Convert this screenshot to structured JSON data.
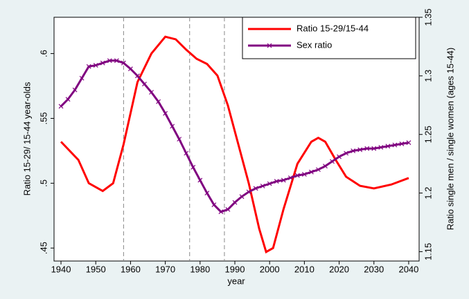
{
  "chart_data": {
    "type": "line",
    "xlabel": "year",
    "ylabel": "Ratio 15-29/ 15-44 year-olds",
    "y2label": "Ratio single men / single women (ages 15-44)",
    "xlim": [
      1938,
      2043
    ],
    "xticks": [
      1940,
      1950,
      1960,
      1970,
      1980,
      1990,
      2000,
      2010,
      2020,
      2030,
      2040
    ],
    "ylim": [
      0.44,
      0.628
    ],
    "yticks": [
      {
        "value": 0.45,
        "label": ".45"
      },
      {
        "value": 0.5,
        "label": ".5"
      },
      {
        "value": 0.55,
        "label": ".55"
      },
      {
        "value": 0.6,
        "label": ".6"
      }
    ],
    "y2lim": [
      1.142,
      1.35
    ],
    "y2ticks": [
      1.15,
      1.2,
      1.25,
      1.3,
      1.35
    ],
    "xlines": [
      1958,
      1977,
      1987
    ],
    "legend": "top-right",
    "grid": false,
    "series": [
      {
        "name": "Ratio 15-29/15-44",
        "color": "#ff0000",
        "marker": false,
        "x": [
          1940,
          1945,
          1948,
          1952,
          1955,
          1958,
          1962,
          1966,
          1970,
          1973,
          1976,
          1979,
          1982,
          1985,
          1988,
          1991,
          1994,
          1997,
          1999,
          2001,
          2004,
          2008,
          2012,
          2014,
          2016,
          2019,
          2022,
          2026,
          2030,
          2035,
          2040
        ],
        "values": [
          0.532,
          0.518,
          0.5,
          0.494,
          0.5,
          0.53,
          0.578,
          0.6,
          0.613,
          0.611,
          0.603,
          0.596,
          0.592,
          0.583,
          0.56,
          0.53,
          0.5,
          0.465,
          0.447,
          0.45,
          0.48,
          0.515,
          0.532,
          0.535,
          0.532,
          0.518,
          0.505,
          0.498,
          0.496,
          0.499,
          0.504
        ]
      },
      {
        "name": "Sex ratio",
        "color": "#800080",
        "marker": true,
        "axis": "y2",
        "x": [
          1940,
          1942,
          1944,
          1946,
          1948,
          1950,
          1952,
          1954,
          1956,
          1958,
          1960,
          1962,
          1964,
          1966,
          1968,
          1970,
          1972,
          1974,
          1976,
          1978,
          1980,
          1982,
          1984,
          1986,
          1988,
          1990,
          1992,
          1994,
          1996,
          1998,
          2000,
          2002,
          2004,
          2006,
          2008,
          2010,
          2012,
          2014,
          2016,
          2018,
          2020,
          2022,
          2024,
          2026,
          2028,
          2030,
          2032,
          2034,
          2036,
          2038,
          2040
        ],
        "values": [
          1.274,
          1.28,
          1.288,
          1.298,
          1.308,
          1.309,
          1.311,
          1.313,
          1.313,
          1.311,
          1.306,
          1.3,
          1.293,
          1.286,
          1.278,
          1.268,
          1.257,
          1.246,
          1.234,
          1.222,
          1.211,
          1.2,
          1.19,
          1.184,
          1.186,
          1.192,
          1.197,
          1.201,
          1.204,
          1.206,
          1.208,
          1.21,
          1.211,
          1.213,
          1.215,
          1.216,
          1.218,
          1.22,
          1.223,
          1.227,
          1.231,
          1.234,
          1.236,
          1.237,
          1.238,
          1.238,
          1.239,
          1.24,
          1.241,
          1.242,
          1.243
        ]
      }
    ]
  }
}
